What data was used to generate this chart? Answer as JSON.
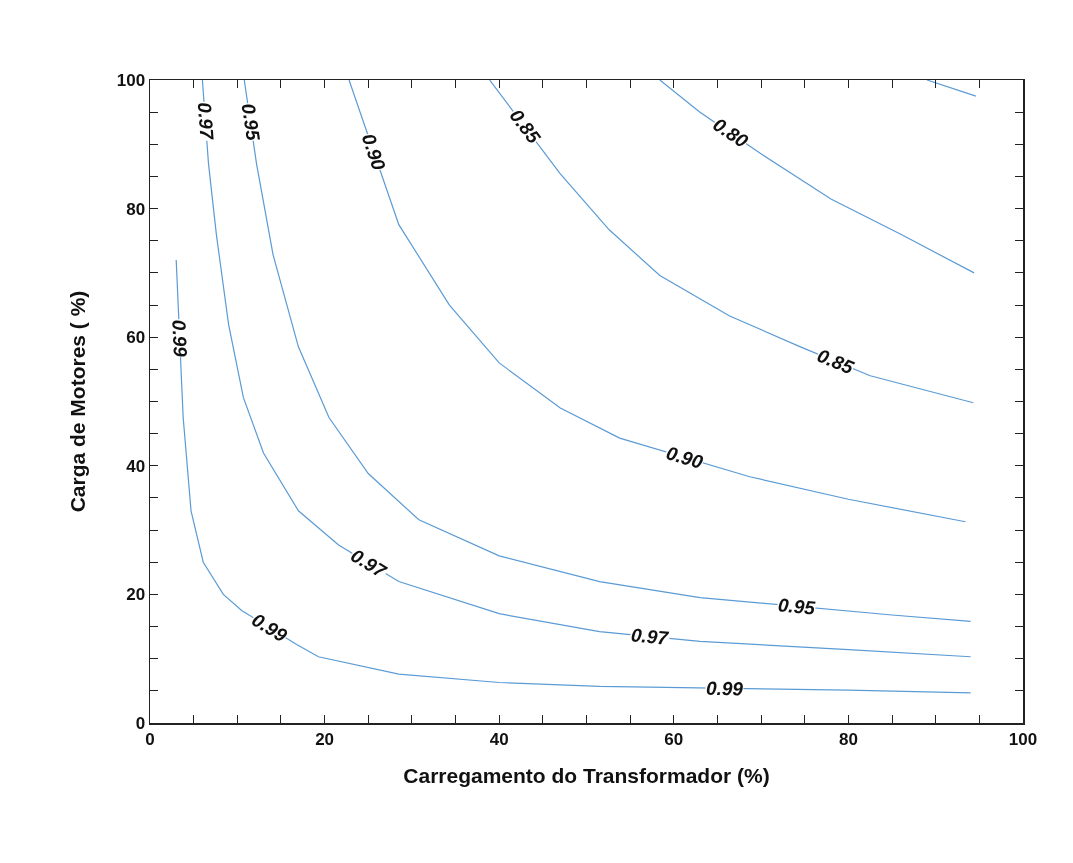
{
  "chart_data": {
    "type": "line",
    "xlabel": "Carregamento do Transformador (%)",
    "ylabel": "Carga de Motores ( %)",
    "xlim": [
      0,
      100
    ],
    "ylim": [
      0,
      100
    ],
    "xticks": [
      0,
      {
        "value": 5,
        "label": null
      },
      {
        "value": 10,
        "label": null
      },
      {
        "value": 15,
        "label": null
      },
      20,
      {
        "value": 25,
        "label": null
      },
      {
        "value": 30,
        "label": null
      },
      {
        "value": 35,
        "label": null
      },
      40,
      {
        "value": 45,
        "label": null
      },
      {
        "value": 50,
        "label": null
      },
      {
        "value": 55,
        "label": null
      },
      60,
      {
        "value": 65,
        "label": null
      },
      {
        "value": 70,
        "label": null
      },
      {
        "value": 75,
        "label": null
      },
      80,
      {
        "value": 85,
        "label": null
      },
      {
        "value": 90,
        "label": null
      },
      {
        "value": 95,
        "label": null
      },
      100
    ],
    "yticks": [
      0,
      {
        "value": 5,
        "label": null
      },
      {
        "value": 10,
        "label": null
      },
      {
        "value": 15,
        "label": null
      },
      20,
      {
        "value": 25,
        "label": null
      },
      {
        "value": 30,
        "label": null
      },
      {
        "value": 35,
        "label": null
      },
      40,
      {
        "value": 45,
        "label": null
      },
      {
        "value": 50,
        "label": null
      },
      {
        "value": 55,
        "label": null
      },
      60,
      {
        "value": 65,
        "label": null
      },
      {
        "value": 70,
        "label": null
      },
      {
        "value": 75,
        "label": null
      },
      80,
      {
        "value": 85,
        "label": null
      },
      {
        "value": 90,
        "label": null
      },
      {
        "value": 95,
        "label": null
      },
      100
    ],
    "grid": false,
    "marker": "none",
    "line_style": "solid",
    "series": [
      {
        "color": "#5b9bd5",
        "x": [
          3.0,
          3.8,
          4.7,
          6.1,
          8.4,
          10.5,
          16.8,
          19.3,
          28.5,
          40,
          51.5,
          80,
          94
        ],
        "values": [
          72,
          47.5,
          33,
          25,
          20,
          17.5,
          12.2,
          10.3,
          7.6,
          6.3,
          5.7,
          5.1,
          4.7
        ]
      },
      {
        "color": "#5b9bd5",
        "x": [
          6,
          6.7,
          7.6,
          9,
          10.7,
          13,
          17,
          21.6,
          28.5,
          40,
          51.5,
          63,
          80,
          94
        ],
        "values": [
          100,
          87,
          76,
          62,
          50.6,
          42,
          33,
          27.7,
          22,
          17,
          14.2,
          12.7,
          11.4,
          10.3
        ]
      },
      {
        "color": "#5b9bd5",
        "x": [
          10.8,
          12.2,
          14.1,
          17,
          20.5,
          25,
          30.8,
          40,
          51.5,
          63,
          85,
          94
        ],
        "values": [
          100,
          87,
          72.8,
          58.5,
          47.5,
          38.8,
          31.6,
          26,
          22,
          19.5,
          16.8,
          15.8
        ]
      },
      {
        "color": "#5b9bd5",
        "x": [
          22.8,
          28.5,
          34.3,
          40,
          47,
          53.8,
          68.7,
          80,
          93.4
        ],
        "values": [
          100,
          77.5,
          65,
          56,
          49,
          44.3,
          38.3,
          34.8,
          31.3
        ]
      },
      {
        "color": "#5b9bd5",
        "x": [
          38.9,
          47,
          52.6,
          58.4,
          66.4,
          74.5,
          82.5,
          94.3
        ],
        "values": [
          100,
          85.4,
          76.7,
          69.6,
          63.3,
          58.5,
          54,
          49.8
        ]
      },
      {
        "color": "#5b9bd5",
        "x": [
          58.4,
          63,
          69.9,
          78,
          86,
          94.4
        ],
        "values": [
          100,
          95,
          88.6,
          81.5,
          76,
          70
        ]
      },
      {
        "color": "#5b9bd5",
        "x": [
          89,
          94.6
        ],
        "values": [
          100,
          97.5
        ]
      }
    ],
    "annotations": [
      {
        "text": "0.99",
        "x": 3.4,
        "y": 59.8
      },
      {
        "text": "0.99",
        "x": 13.65,
        "y": 14.85
      },
      {
        "text": "0.99",
        "x": 65.75,
        "y": 5.4
      },
      {
        "text": "0.97",
        "x": 6.35,
        "y": 93.5
      },
      {
        "text": "0.97",
        "x": 25.05,
        "y": 24.85
      },
      {
        "text": "0.97",
        "x": 57.25,
        "y": 13.45
      },
      {
        "text": "0.95",
        "x": 11.5,
        "y": 93.5
      },
      {
        "text": "0.95",
        "x": 74,
        "y": 18.15
      },
      {
        "text": "0.90",
        "x": 25.65,
        "y": 88.75
      },
      {
        "text": "0.90",
        "x": 61.25,
        "y": 41.3
      },
      {
        "text": "0.85",
        "x": 42.95,
        "y": 92.7
      },
      {
        "text": "0.85",
        "x": 78.5,
        "y": 56.25
      },
      {
        "text": "0.80",
        "x": 66.45,
        "y": 91.8
      }
    ]
  }
}
